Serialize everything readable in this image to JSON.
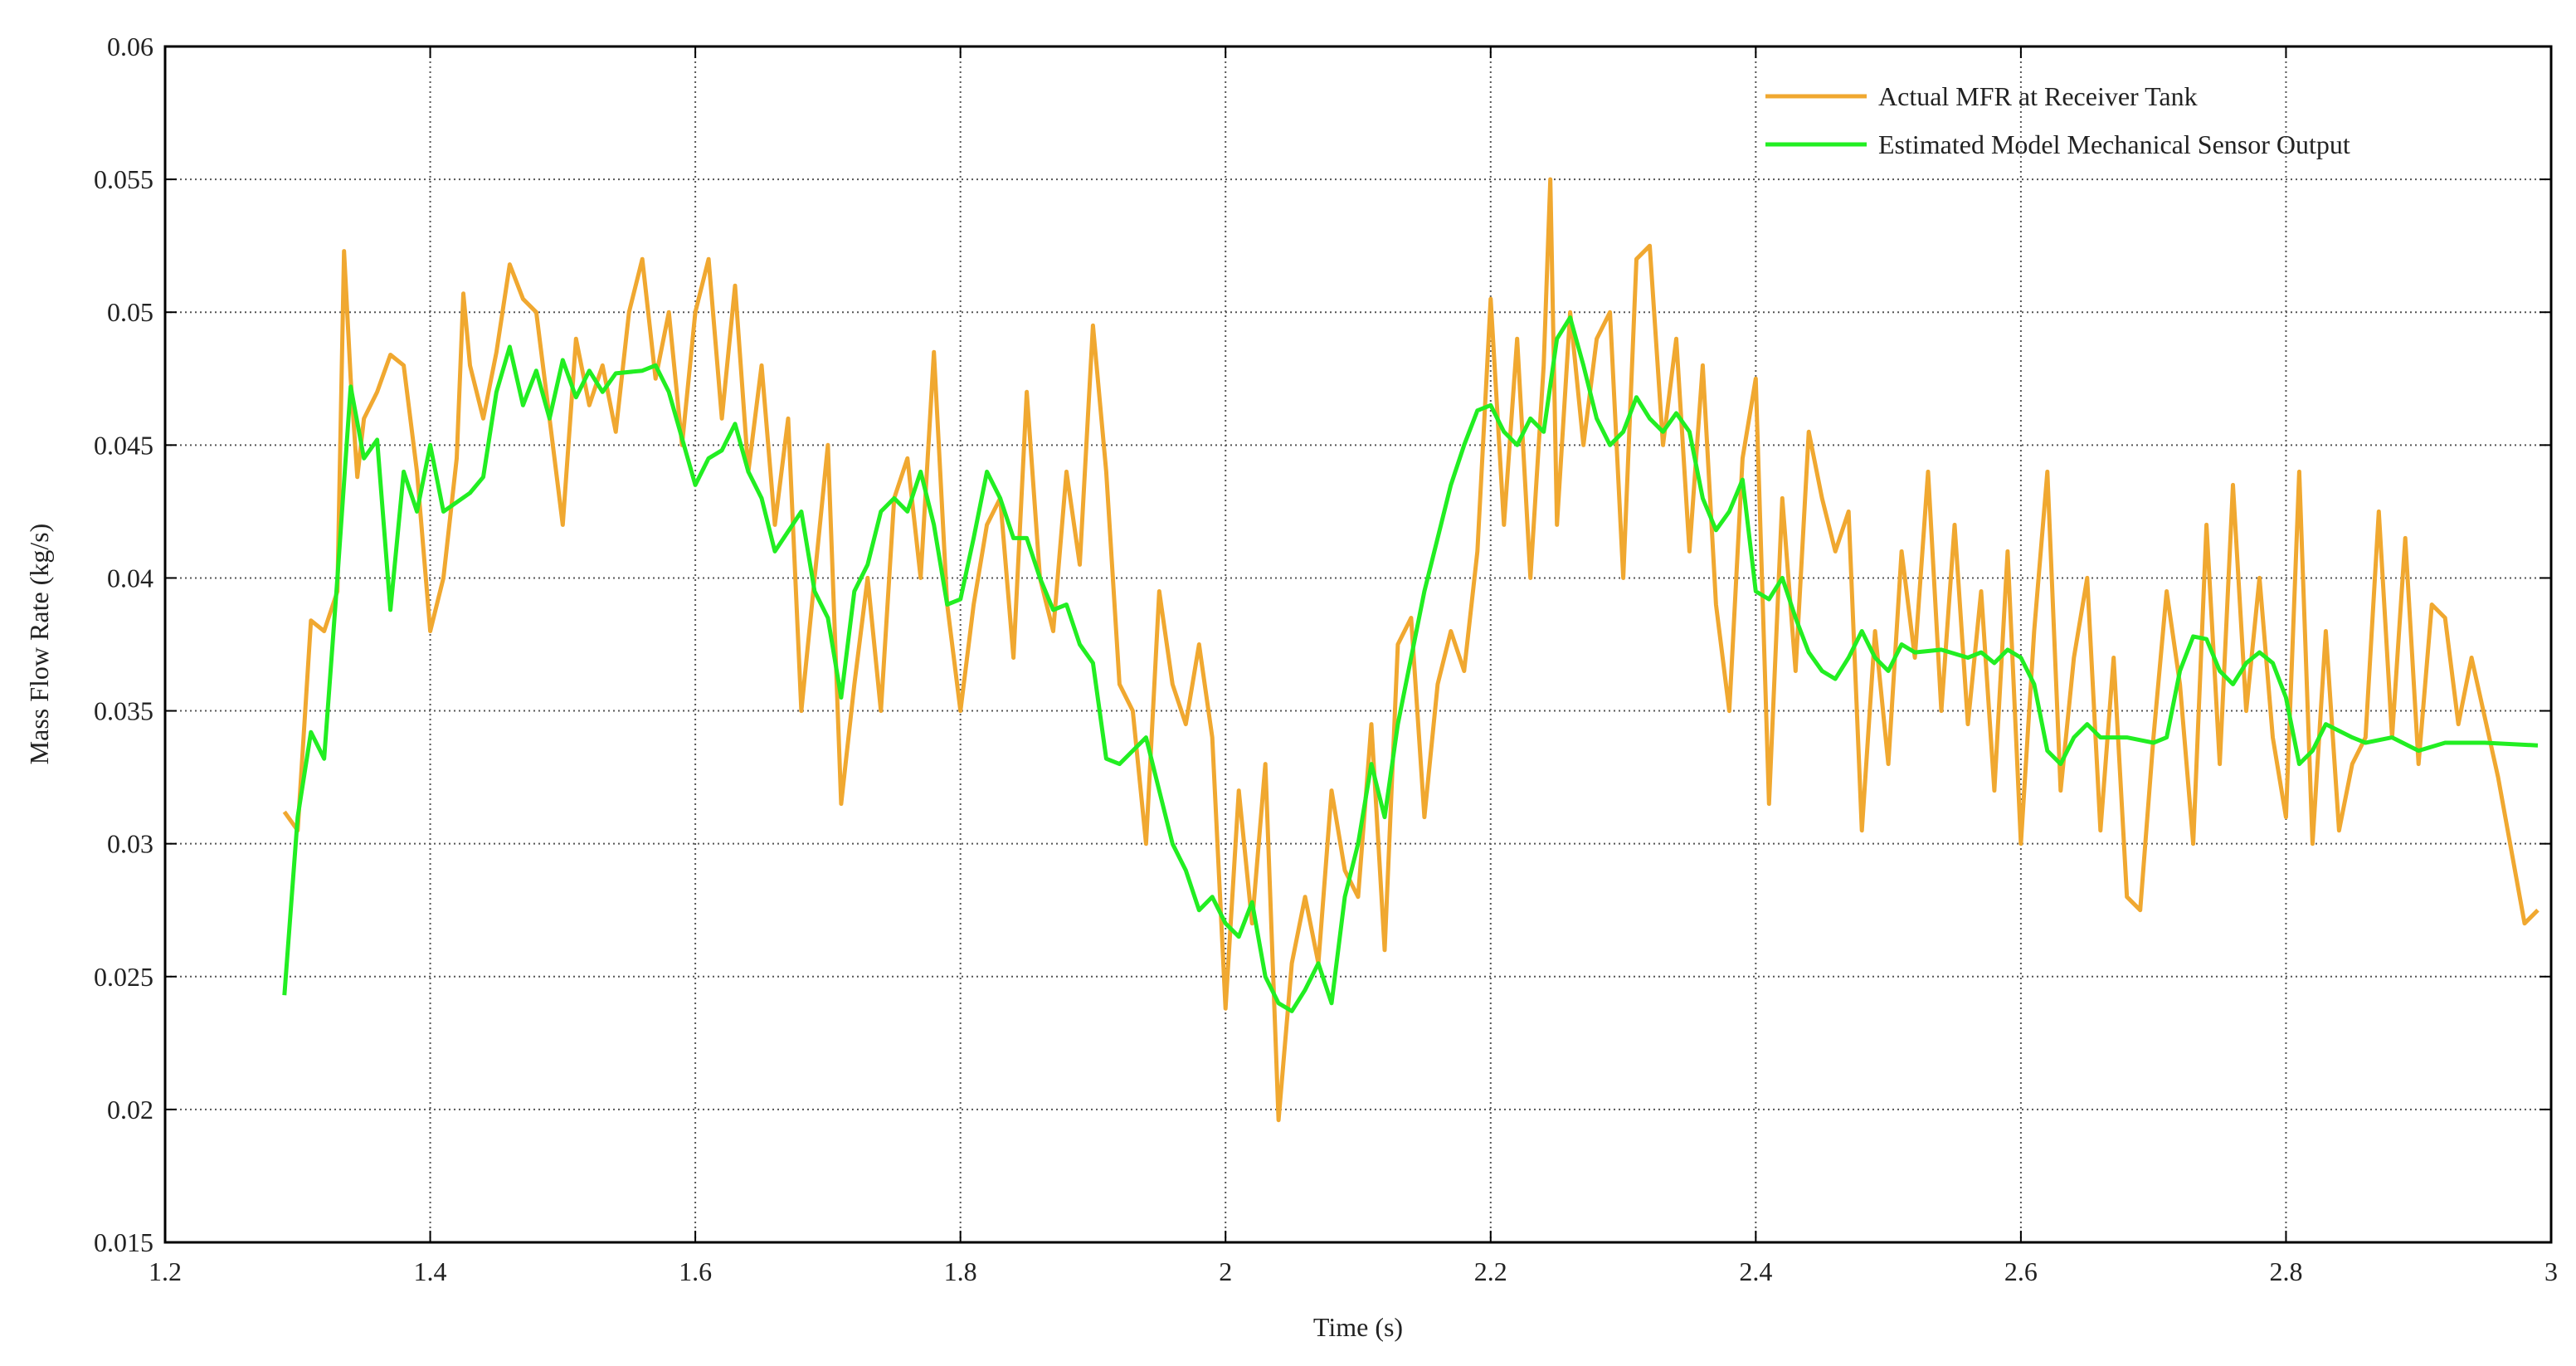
{
  "chart_data": {
    "type": "line",
    "xlabel": "Time (s)",
    "ylabel": "Mass Flow Rate (kg/s)",
    "xlim": [
      1.2,
      3
    ],
    "xticks": [
      1.2,
      1.4,
      1.6,
      1.8,
      2,
      2.2,
      2.4,
      2.6,
      2.8,
      3
    ],
    "ylim": [
      0.015,
      0.06
    ],
    "yticks": [
      0.015,
      0.02,
      0.025,
      0.03,
      0.035,
      0.04,
      0.045,
      0.05,
      0.055,
      0.06
    ],
    "grid": true,
    "legend": "upper right",
    "series": [
      {
        "name": "Actual MFR at Receiver Tank",
        "color": "#f0a830",
        "x": [
          1.29,
          1.3,
          1.31,
          1.32,
          1.33,
          1.335,
          1.34,
          1.345,
          1.35,
          1.36,
          1.37,
          1.38,
          1.39,
          1.4,
          1.41,
          1.42,
          1.425,
          1.43,
          1.44,
          1.45,
          1.46,
          1.47,
          1.48,
          1.49,
          1.5,
          1.51,
          1.52,
          1.53,
          1.54,
          1.55,
          1.56,
          1.57,
          1.58,
          1.59,
          1.6,
          1.61,
          1.62,
          1.63,
          1.64,
          1.65,
          1.66,
          1.67,
          1.68,
          1.69,
          1.7,
          1.71,
          1.72,
          1.73,
          1.74,
          1.75,
          1.76,
          1.77,
          1.78,
          1.79,
          1.8,
          1.81,
          1.82,
          1.83,
          1.84,
          1.85,
          1.86,
          1.87,
          1.88,
          1.89,
          1.9,
          1.91,
          1.92,
          1.93,
          1.94,
          1.95,
          1.96,
          1.97,
          1.98,
          1.99,
          2,
          2.01,
          2.02,
          2.03,
          2.04,
          2.05,
          2.06,
          2.07,
          2.08,
          2.09,
          2.1,
          2.11,
          2.12,
          2.13,
          2.14,
          2.15,
          2.16,
          2.17,
          2.18,
          2.19,
          2.2,
          2.21,
          2.22,
          2.23,
          2.24,
          2.245,
          2.25,
          2.26,
          2.27,
          2.28,
          2.29,
          2.3,
          2.31,
          2.32,
          2.33,
          2.34,
          2.35,
          2.36,
          2.37,
          2.38,
          2.39,
          2.4,
          2.41,
          2.42,
          2.43,
          2.44,
          2.45,
          2.46,
          2.47,
          2.48,
          2.49,
          2.5,
          2.51,
          2.52,
          2.53,
          2.54,
          2.55,
          2.56,
          2.57,
          2.58,
          2.59,
          2.6,
          2.61,
          2.62,
          2.63,
          2.64,
          2.65,
          2.66,
          2.67,
          2.68,
          2.69,
          2.7,
          2.71,
          2.72,
          2.73,
          2.74,
          2.75,
          2.76,
          2.77,
          2.78,
          2.79,
          2.8,
          2.81,
          2.82,
          2.83,
          2.84,
          2.85,
          2.86,
          2.87,
          2.88,
          2.89,
          2.9,
          2.91,
          2.92,
          2.93,
          2.94,
          2.96,
          2.98,
          2.99
        ],
        "values": [
          0.0312,
          0.0305,
          0.0384,
          0.038,
          0.0395,
          0.0523,
          0.0475,
          0.0438,
          0.046,
          0.047,
          0.0484,
          0.048,
          0.044,
          0.038,
          0.04,
          0.0445,
          0.0507,
          0.048,
          0.046,
          0.0485,
          0.0518,
          0.0505,
          0.05,
          0.046,
          0.042,
          0.049,
          0.0465,
          0.048,
          0.0455,
          0.05,
          0.052,
          0.0475,
          0.05,
          0.045,
          0.05,
          0.052,
          0.046,
          0.051,
          0.044,
          0.048,
          0.042,
          0.046,
          0.035,
          0.04,
          0.045,
          0.0315,
          0.036,
          0.04,
          0.035,
          0.043,
          0.0445,
          0.04,
          0.0485,
          0.039,
          0.035,
          0.039,
          0.042,
          0.043,
          0.037,
          0.047,
          0.04,
          0.038,
          0.044,
          0.0405,
          0.0495,
          0.044,
          0.036,
          0.035,
          0.03,
          0.0395,
          0.036,
          0.0345,
          0.0375,
          0.034,
          0.0238,
          0.032,
          0.027,
          0.033,
          0.0196,
          0.0255,
          0.028,
          0.0255,
          0.032,
          0.029,
          0.028,
          0.0345,
          0.026,
          0.0375,
          0.0385,
          0.031,
          0.036,
          0.038,
          0.0365,
          0.041,
          0.0505,
          0.042,
          0.049,
          0.04,
          0.048,
          0.055,
          0.042,
          0.05,
          0.045,
          0.049,
          0.05,
          0.04,
          0.052,
          0.0525,
          0.045,
          0.049,
          0.041,
          0.048,
          0.039,
          0.035,
          0.0445,
          0.0475,
          0.0315,
          0.043,
          0.0365,
          0.0455,
          0.043,
          0.041,
          0.0425,
          0.0305,
          0.038,
          0.033,
          0.041,
          0.037,
          0.044,
          0.035,
          0.042,
          0.0345,
          0.0395,
          0.032,
          0.041,
          0.03,
          0.038,
          0.044,
          0.032,
          0.037,
          0.04,
          0.0305,
          0.037,
          0.028,
          0.0275,
          0.034,
          0.0395,
          0.036,
          0.03,
          0.042,
          0.033,
          0.0435,
          0.035,
          0.04,
          0.034,
          0.031,
          0.044,
          0.03,
          0.038,
          0.0305,
          0.033,
          0.034,
          0.0425,
          0.034,
          0.0415,
          0.033,
          0.039,
          0.0385,
          0.0345,
          0.037,
          0.0325,
          0.027,
          0.0275
        ]
      },
      {
        "name": "Estimated Model Mechanical Sensor Output",
        "color": "#22ee22",
        "x": [
          1.29,
          1.3,
          1.31,
          1.32,
          1.33,
          1.34,
          1.35,
          1.36,
          1.37,
          1.38,
          1.39,
          1.4,
          1.41,
          1.43,
          1.44,
          1.45,
          1.46,
          1.47,
          1.48,
          1.49,
          1.5,
          1.51,
          1.52,
          1.53,
          1.54,
          1.56,
          1.57,
          1.58,
          1.6,
          1.61,
          1.62,
          1.63,
          1.64,
          1.65,
          1.66,
          1.68,
          1.69,
          1.7,
          1.71,
          1.72,
          1.73,
          1.74,
          1.75,
          1.76,
          1.77,
          1.78,
          1.79,
          1.8,
          1.81,
          1.82,
          1.83,
          1.84,
          1.85,
          1.86,
          1.87,
          1.88,
          1.89,
          1.9,
          1.91,
          1.92,
          1.94,
          1.95,
          1.96,
          1.97,
          1.98,
          1.99,
          2,
          2.01,
          2.02,
          2.03,
          2.04,
          2.05,
          2.06,
          2.07,
          2.08,
          2.09,
          2.1,
          2.11,
          2.12,
          2.13,
          2.14,
          2.15,
          2.16,
          2.17,
          2.18,
          2.19,
          2.2,
          2.21,
          2.22,
          2.23,
          2.24,
          2.25,
          2.26,
          2.27,
          2.28,
          2.29,
          2.3,
          2.31,
          2.32,
          2.33,
          2.34,
          2.35,
          2.36,
          2.37,
          2.38,
          2.39,
          2.4,
          2.41,
          2.42,
          2.43,
          2.44,
          2.45,
          2.46,
          2.47,
          2.48,
          2.49,
          2.5,
          2.51,
          2.52,
          2.54,
          2.56,
          2.57,
          2.58,
          2.59,
          2.6,
          2.61,
          2.62,
          2.63,
          2.64,
          2.65,
          2.66,
          2.68,
          2.7,
          2.71,
          2.72,
          2.73,
          2.74,
          2.75,
          2.76,
          2.77,
          2.78,
          2.79,
          2.8,
          2.81,
          2.82,
          2.83,
          2.85,
          2.86,
          2.88,
          2.9,
          2.92,
          2.95,
          2.99
        ],
        "values": [
          0.0243,
          0.031,
          0.0342,
          0.0332,
          0.04,
          0.0472,
          0.0445,
          0.0452,
          0.0388,
          0.044,
          0.0425,
          0.045,
          0.0425,
          0.0432,
          0.0438,
          0.047,
          0.0487,
          0.0465,
          0.0478,
          0.046,
          0.0482,
          0.0468,
          0.0478,
          0.047,
          0.0477,
          0.0478,
          0.048,
          0.047,
          0.0435,
          0.0445,
          0.0448,
          0.0458,
          0.044,
          0.043,
          0.041,
          0.0425,
          0.0395,
          0.0385,
          0.0355,
          0.0395,
          0.0405,
          0.0425,
          0.043,
          0.0425,
          0.044,
          0.042,
          0.039,
          0.0392,
          0.0415,
          0.044,
          0.043,
          0.0415,
          0.0415,
          0.04,
          0.0388,
          0.039,
          0.0375,
          0.0368,
          0.0332,
          0.033,
          0.034,
          0.032,
          0.03,
          0.029,
          0.0275,
          0.028,
          0.027,
          0.0265,
          0.0278,
          0.025,
          0.024,
          0.0237,
          0.0245,
          0.0255,
          0.024,
          0.028,
          0.03,
          0.033,
          0.031,
          0.0345,
          0.037,
          0.0395,
          0.0415,
          0.0435,
          0.045,
          0.0463,
          0.0465,
          0.0455,
          0.045,
          0.046,
          0.0455,
          0.049,
          0.0498,
          0.048,
          0.046,
          0.045,
          0.0455,
          0.0468,
          0.046,
          0.0455,
          0.0462,
          0.0455,
          0.043,
          0.0418,
          0.0425,
          0.0437,
          0.0395,
          0.0392,
          0.04,
          0.0385,
          0.0372,
          0.0365,
          0.0362,
          0.037,
          0.038,
          0.037,
          0.0365,
          0.0375,
          0.0372,
          0.0373,
          0.037,
          0.0372,
          0.0368,
          0.0373,
          0.037,
          0.036,
          0.0335,
          0.033,
          0.034,
          0.0345,
          0.034,
          0.034,
          0.0338,
          0.034,
          0.0365,
          0.0378,
          0.0377,
          0.0365,
          0.036,
          0.0368,
          0.0372,
          0.0368,
          0.0355,
          0.033,
          0.0335,
          0.0345,
          0.034,
          0.0338,
          0.034,
          0.0335,
          0.0338,
          0.0338,
          0.0337
        ]
      }
    ]
  }
}
